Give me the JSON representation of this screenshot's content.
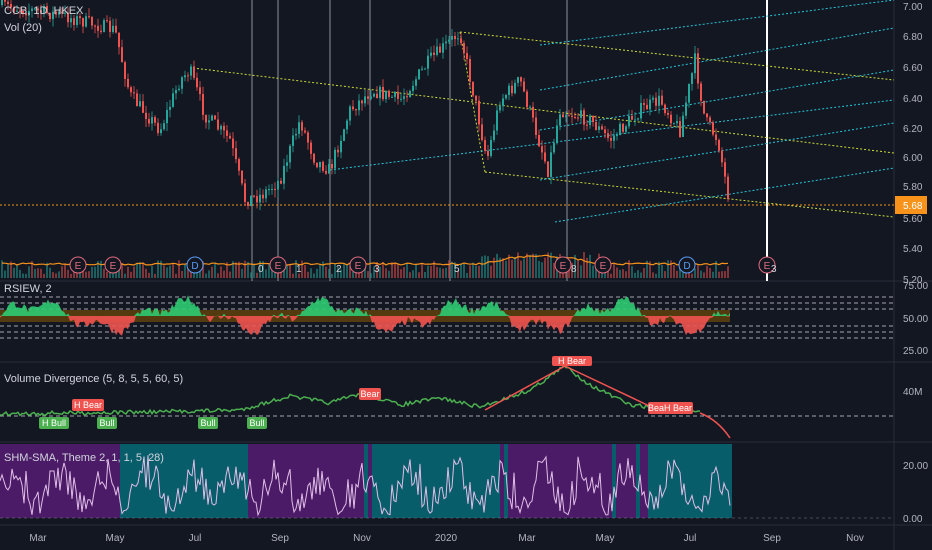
{
  "header": {
    "symbol": "CCB, 1D, HKEX",
    "vol": "Vol (20)"
  },
  "indicators": {
    "rsi": "RSIEW, 2",
    "voldiv": "Volume Divergence (5, 8, 5, 5, 60, 5)",
    "shm": "SHM-SMA, Theme 2, 1, 1, 5, 28)"
  },
  "price_axis": [
    "7.00",
    "6.80",
    "6.60",
    "6.40",
    "6.20",
    "6.00",
    "5.80",
    "5.60",
    "5.40",
    "5.20"
  ],
  "last_price": "5.68",
  "rsi_axis": [
    "75.00",
    "50.00",
    "25.00"
  ],
  "vol_axis": "40M",
  "osc_axis": [
    "20.00",
    "0.00"
  ],
  "time_axis": [
    "Mar",
    "May",
    "Jul",
    "Sep",
    "Nov",
    "2020",
    "Mar",
    "May",
    "Jul",
    "Sep",
    "Nov"
  ],
  "earnings_markers": [
    "E",
    "E",
    "E",
    "E",
    "E",
    "E",
    "E"
  ],
  "dividend_markers": [
    "D",
    "D"
  ],
  "wave_labels": [
    "0",
    "1",
    "2",
    "3",
    "5",
    "8",
    "3"
  ],
  "divergence_labels": [
    "H Bull",
    "H Bear",
    "Bull",
    "Bull",
    "Bull",
    "Bear",
    "H Bear",
    "BeaH Bear"
  ],
  "colors": {
    "bg": "#131722",
    "up": "#26a69a",
    "down": "#ef5350",
    "grid": "#2a2e39",
    "green": "#4caf50",
    "red": "#ef5350",
    "purple": "#7b1fa2",
    "accent": "#f7931a"
  }
}
